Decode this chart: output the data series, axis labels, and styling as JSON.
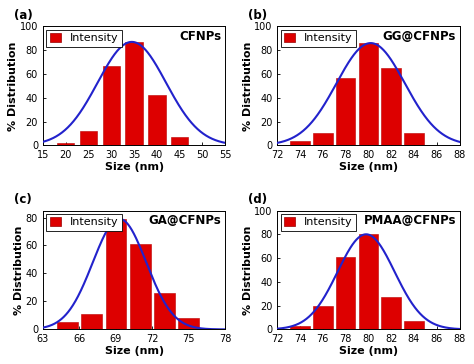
{
  "panels": [
    {
      "label": "(a)",
      "title": "CFNPs",
      "bar_centers": [
        20,
        25,
        30,
        35,
        40,
        45
      ],
      "bar_heights": [
        2,
        12,
        67,
        87,
        42,
        7
      ],
      "bar_width": 3.8,
      "xlim": [
        15,
        55
      ],
      "xticks": [
        15,
        20,
        25,
        30,
        35,
        40,
        45,
        50,
        55
      ],
      "ylim": [
        0,
        100
      ],
      "yticks": [
        0,
        20,
        40,
        60,
        80,
        100
      ],
      "xlabel": "Size (nm)",
      "ylabel": "% Distribution",
      "curve_mean": 34.5,
      "curve_std": 7.5
    },
    {
      "label": "(b)",
      "title": "GG@CFNPs",
      "bar_centers": [
        74,
        76,
        78,
        80,
        82,
        84
      ],
      "bar_heights": [
        4,
        10,
        57,
        86,
        65,
        10
      ],
      "bar_width": 1.7,
      "xlim": [
        72,
        88
      ],
      "xticks": [
        72,
        74,
        76,
        78,
        80,
        82,
        84,
        86,
        88
      ],
      "ylim": [
        0,
        100
      ],
      "yticks": [
        0,
        20,
        40,
        60,
        80,
        100
      ],
      "xlabel": "Size (nm)",
      "ylabel": "% Distribution",
      "curve_mean": 80.2,
      "curve_std": 3.0
    },
    {
      "label": "(c)",
      "title": "GA@CFNPs",
      "bar_centers": [
        65,
        67,
        69,
        71,
        73,
        75
      ],
      "bar_heights": [
        5,
        11,
        79,
        61,
        26,
        8
      ],
      "bar_width": 1.7,
      "xlim": [
        63,
        78
      ],
      "xticks": [
        63,
        66,
        69,
        72,
        75,
        78
      ],
      "ylim": [
        0,
        85
      ],
      "yticks": [
        0,
        20,
        40,
        60,
        80
      ],
      "xlabel": "Size (nm)",
      "ylabel": "% Distribution",
      "curve_mean": 69.3,
      "curve_std": 2.2
    },
    {
      "label": "(d)",
      "title": "PMAA@CFNPs",
      "bar_centers": [
        74,
        76,
        78,
        80,
        82,
        84
      ],
      "bar_heights": [
        3,
        20,
        61,
        80,
        27,
        7
      ],
      "bar_width": 1.7,
      "xlim": [
        72,
        88
      ],
      "xticks": [
        72,
        74,
        76,
        78,
        80,
        82,
        84,
        86,
        88
      ],
      "ylim": [
        0,
        100
      ],
      "yticks": [
        0,
        20,
        40,
        60,
        80,
        100
      ],
      "xlabel": "Size (nm)",
      "ylabel": "% Distribution",
      "curve_mean": 79.8,
      "curve_std": 2.5
    }
  ],
  "bar_color": "#dd0000",
  "bar_edgecolor": "#bb0000",
  "curve_color": "#2222cc",
  "curve_linewidth": 1.5,
  "legend_label": "Intensity",
  "label_fontsize": 8.5,
  "tick_fontsize": 7,
  "title_fontsize": 8.5,
  "axis_label_fontsize": 8
}
